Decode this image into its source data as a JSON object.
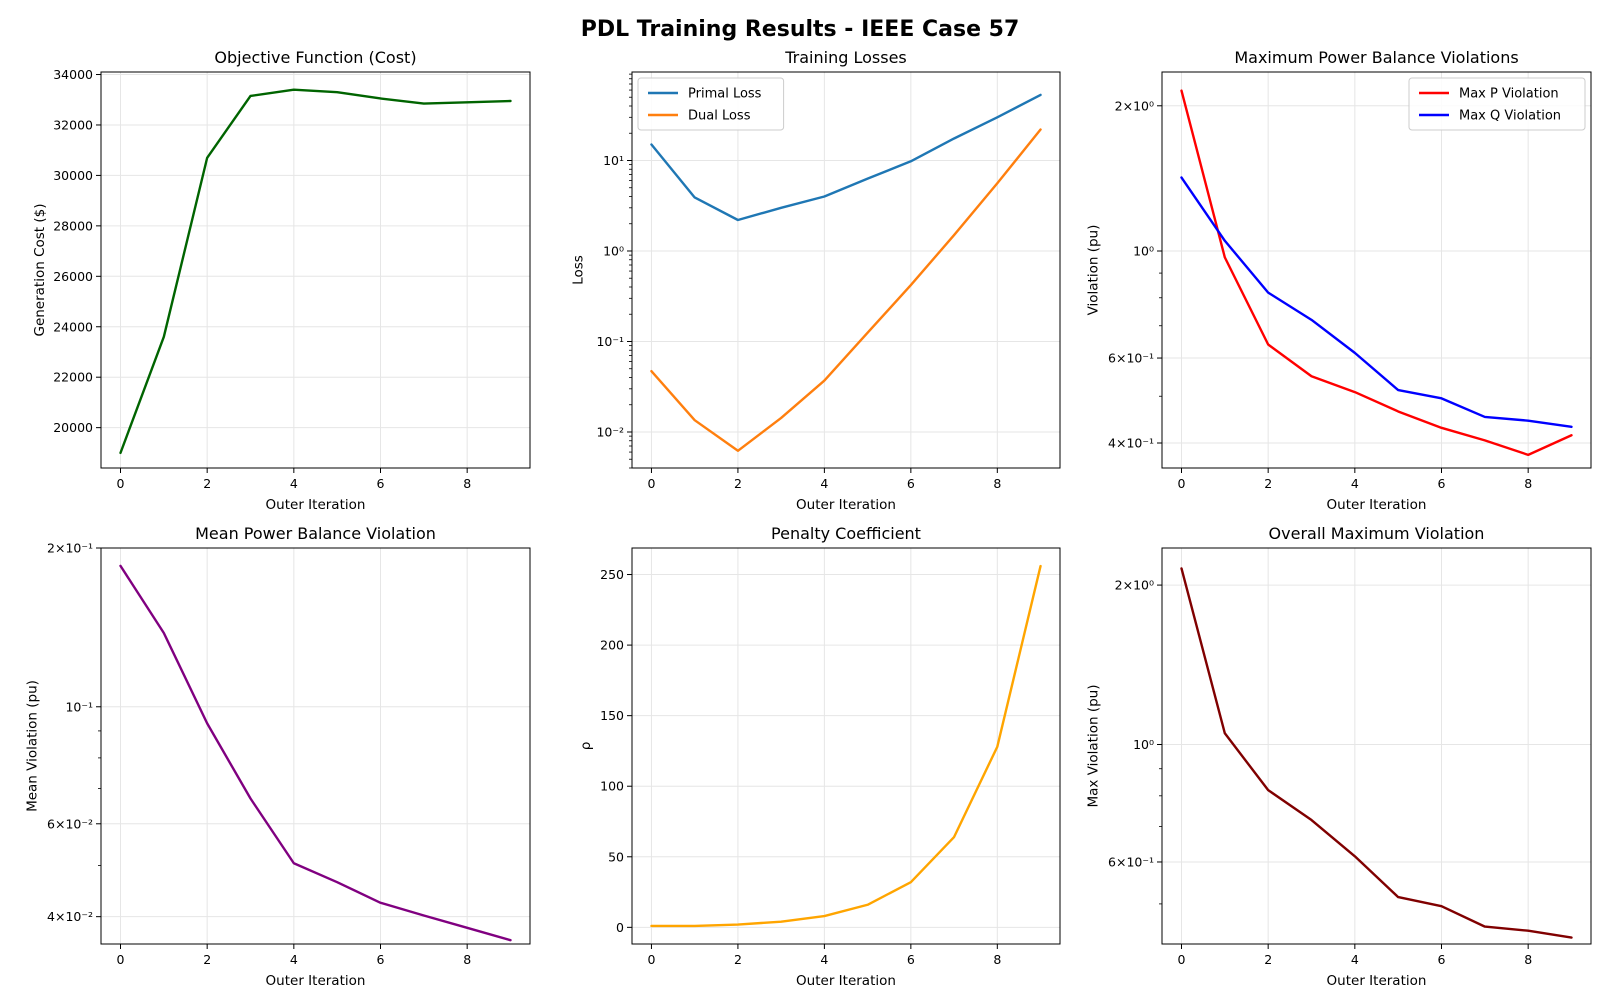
{
  "figure": {
    "title": "PDL Training Results - IEEE Case 57"
  },
  "chart_data": [
    {
      "type": "line",
      "title": "Objective Function (Cost)",
      "xlabel": "Outer Iteration",
      "ylabel": "Generation Cost ($)",
      "yscale": "linear",
      "xlim": [
        -0.45,
        9.45
      ],
      "ylim": [
        18400,
        34100
      ],
      "xticks": [
        0,
        2,
        4,
        6,
        8
      ],
      "yticks": [
        20000,
        22000,
        24000,
        26000,
        28000,
        30000,
        32000,
        34000
      ],
      "ytick_labels": [
        "20000",
        "22000",
        "24000",
        "26000",
        "28000",
        "30000",
        "32000",
        "34000"
      ],
      "grid": true,
      "legend": null,
      "x": [
        0,
        1,
        2,
        3,
        4,
        5,
        6,
        7,
        8,
        9
      ],
      "series": [
        {
          "color": "#006400",
          "values": [
            19000,
            23600,
            30700,
            33150,
            33400,
            33300,
            33050,
            32850,
            32900,
            32950
          ]
        }
      ]
    },
    {
      "type": "line",
      "title": "Training Losses",
      "xlabel": "Outer Iteration",
      "ylabel": "Loss",
      "yscale": "log",
      "xlim": [
        -0.45,
        9.45
      ],
      "ylim": [
        0.004,
        95
      ],
      "xticks": [
        0,
        2,
        4,
        6,
        8
      ],
      "yticks": [
        0.01,
        0.1,
        1,
        10
      ],
      "ytick_labels": [
        "10⁻²",
        "10⁻¹",
        "10⁰",
        "10¹"
      ],
      "minor_ticks": true,
      "grid": true,
      "legend": "upper left",
      "x": [
        0,
        1,
        2,
        3,
        4,
        5,
        6,
        7,
        8,
        9
      ],
      "series": [
        {
          "name": "Primal Loss",
          "color": "#1f77b4",
          "values": [
            15,
            3.9,
            2.2,
            3.0,
            4.0,
            6.3,
            9.8,
            17.5,
            30,
            53
          ]
        },
        {
          "name": "Dual Loss",
          "color": "#ff7f0e",
          "values": [
            0.047,
            0.0135,
            0.0062,
            0.0143,
            0.037,
            0.125,
            0.42,
            1.5,
            5.6,
            22
          ]
        }
      ]
    },
    {
      "type": "line",
      "title": "Maximum Power Balance Violations",
      "xlabel": "Outer Iteration",
      "ylabel": "Violation (pu)",
      "yscale": "log",
      "xlim": [
        -0.45,
        9.45
      ],
      "ylim": [
        0.355,
        2.35
      ],
      "xticks": [
        0,
        2,
        4,
        6,
        8
      ],
      "yticks": [
        0.4,
        0.6,
        1,
        2
      ],
      "ytick_labels": [
        "4×10⁻¹",
        "6×10⁻¹",
        "10⁰",
        "2×10⁰"
      ],
      "minor_ticks": true,
      "grid": true,
      "legend": "upper right",
      "x": [
        0,
        1,
        2,
        3,
        4,
        5,
        6,
        7,
        8,
        9
      ],
      "series": [
        {
          "name": "Max P Violation",
          "color": "#ff0000",
          "values": [
            2.15,
            0.97,
            0.64,
            0.55,
            0.51,
            0.465,
            0.43,
            0.405,
            0.378,
            0.415
          ]
        },
        {
          "name": "Max Q Violation",
          "color": "#0000ff",
          "values": [
            1.42,
            1.05,
            0.82,
            0.72,
            0.615,
            0.515,
            0.495,
            0.453,
            0.445,
            0.432
          ]
        }
      ]
    },
    {
      "type": "line",
      "title": "Mean Power Balance Violation",
      "xlabel": "Outer Iteration",
      "ylabel": "Mean Violation (pu)",
      "yscale": "log",
      "xlim": [
        -0.45,
        9.45
      ],
      "ylim": [
        0.0355,
        0.2
      ],
      "xticks": [
        0,
        2,
        4,
        6,
        8
      ],
      "yticks": [
        0.04,
        0.06,
        0.1,
        0.2
      ],
      "ytick_labels": [
        "4×10⁻²",
        "6×10⁻²",
        "10⁻¹",
        "2×10⁻¹"
      ],
      "minor_ticks": true,
      "grid": true,
      "legend": null,
      "x": [
        0,
        1,
        2,
        3,
        4,
        5,
        6,
        7,
        8,
        9
      ],
      "series": [
        {
          "color": "#800080",
          "values": [
            0.185,
            0.138,
            0.093,
            0.067,
            0.0505,
            0.0465,
            0.0425,
            0.0402,
            0.0381,
            0.0361
          ]
        }
      ]
    },
    {
      "type": "line",
      "title": "Penalty Coefficient",
      "xlabel": "Outer Iteration",
      "ylabel": "ρ",
      "yscale": "linear",
      "xlim": [
        -0.45,
        9.45
      ],
      "ylim": [
        -11.8,
        268.8
      ],
      "xticks": [
        0,
        2,
        4,
        6,
        8
      ],
      "yticks": [
        0,
        50,
        100,
        150,
        200,
        250
      ],
      "ytick_labels": [
        "0",
        "50",
        "100",
        "150",
        "200",
        "250"
      ],
      "grid": true,
      "legend": null,
      "x": [
        0,
        1,
        2,
        3,
        4,
        5,
        6,
        7,
        8,
        9
      ],
      "series": [
        {
          "color": "#ffa500",
          "values": [
            1,
            1,
            2,
            4,
            8,
            16,
            32,
            64,
            128,
            256
          ]
        }
      ]
    },
    {
      "type": "line",
      "title": "Overall Maximum Violation",
      "xlabel": "Outer Iteration",
      "ylabel": "Max Violation (pu)",
      "yscale": "log",
      "xlim": [
        -0.45,
        9.45
      ],
      "ylim": [
        0.42,
        2.35
      ],
      "xticks": [
        0,
        2,
        4,
        6,
        8
      ],
      "yticks": [
        0.6,
        1,
        2
      ],
      "ytick_labels": [
        "6×10⁻¹",
        "10⁰",
        "2×10⁰"
      ],
      "minor_ticks": true,
      "grid": true,
      "legend": null,
      "x": [
        0,
        1,
        2,
        3,
        4,
        5,
        6,
        7,
        8,
        9
      ],
      "series": [
        {
          "color": "#800000",
          "values": [
            2.15,
            1.05,
            0.82,
            0.72,
            0.615,
            0.515,
            0.495,
            0.453,
            0.445,
            0.432
          ]
        }
      ]
    }
  ]
}
